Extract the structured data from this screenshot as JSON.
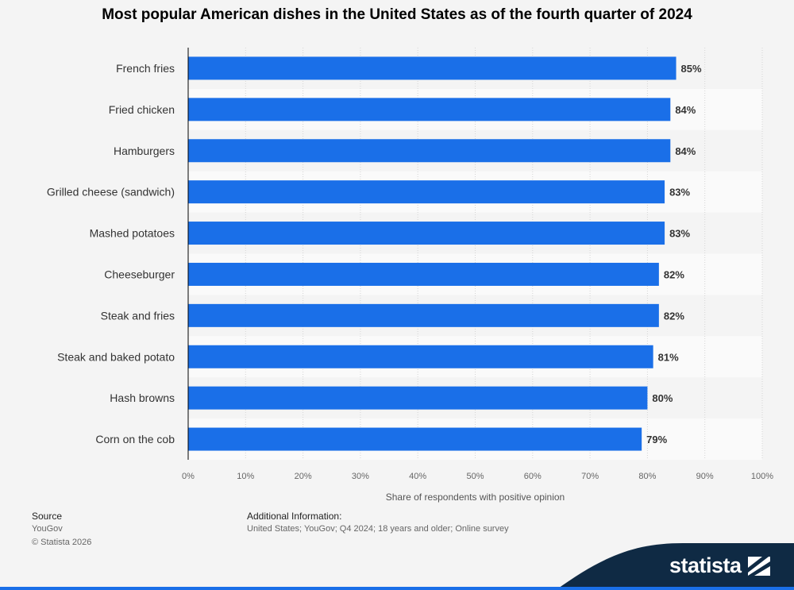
{
  "chart_data": {
    "type": "bar",
    "orientation": "horizontal",
    "title": "Most popular American dishes in the United States as of the fourth quarter of 2024",
    "xlabel": "Share of respondents with positive opinion",
    "ylabel": "",
    "xlim": [
      0,
      100
    ],
    "ticks": [
      "0%",
      "10%",
      "20%",
      "30%",
      "40%",
      "50%",
      "60%",
      "70%",
      "80%",
      "90%",
      "100%"
    ],
    "categories": [
      "French fries",
      "Fried chicken",
      "Hamburgers",
      "Grilled cheese (sandwich)",
      "Mashed potatoes",
      "Cheeseburger",
      "Steak and fries",
      "Steak and baked potato",
      "Hash browns",
      "Corn on the cob"
    ],
    "values": [
      85,
      84,
      84,
      83,
      83,
      82,
      82,
      81,
      80,
      79
    ],
    "value_labels": [
      "85%",
      "84%",
      "84%",
      "83%",
      "83%",
      "82%",
      "82%",
      "81%",
      "80%",
      "79%"
    ],
    "grid": true,
    "bar_color": "#1a6fe8"
  },
  "footer": {
    "source_label": "Source",
    "source_value": "YouGov",
    "copyright": "© Statista 2026",
    "additional_label": "Additional Information:",
    "additional_value": "United States; YouGov; Q4 2024; 18 years and older; Online survey"
  },
  "brand": {
    "name": "statista",
    "colors": {
      "dark": "#0f2a44",
      "accent": "#1a6fe8"
    }
  }
}
